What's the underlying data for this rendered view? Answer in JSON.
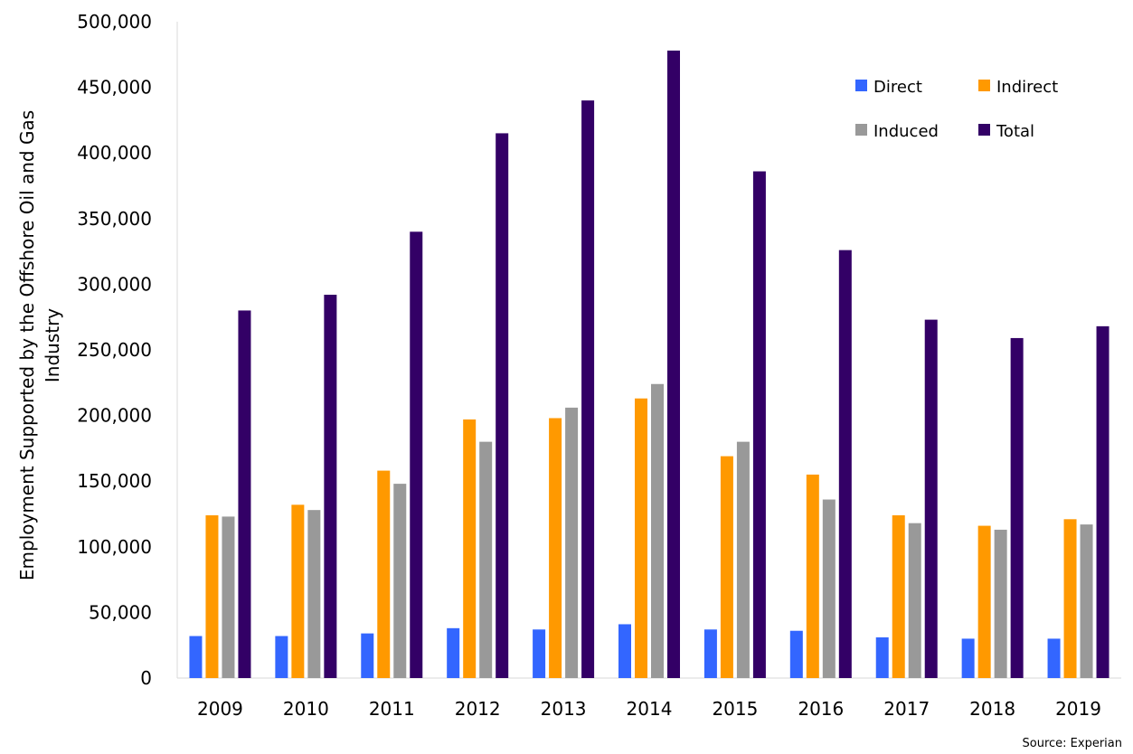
{
  "chart_data": {
    "type": "bar",
    "title": "",
    "xlabel": "",
    "ylabel_lines": [
      "Employment Supported by the Offshore Oil and Gas",
      "Industry"
    ],
    "ylim": [
      0,
      500000
    ],
    "yticks": [
      "0",
      "50,000",
      "100,000",
      "150,000",
      "200,000",
      "250,000",
      "300,000",
      "350,000",
      "400,000",
      "450,000",
      "500,000"
    ],
    "categories": [
      "2009",
      "2010",
      "2011",
      "2012",
      "2013",
      "2014",
      "2015",
      "2016",
      "2017",
      "2018",
      "2019"
    ],
    "series": [
      {
        "name": "Direct",
        "color": "#3366ff",
        "values": [
          32000,
          32000,
          34000,
          38000,
          37000,
          41000,
          37000,
          36000,
          31000,
          30000,
          30000
        ]
      },
      {
        "name": "Indirect",
        "color": "#ff9900",
        "values": [
          124000,
          132000,
          158000,
          197000,
          198000,
          213000,
          169000,
          155000,
          124000,
          116000,
          121000
        ]
      },
      {
        "name": "Induced",
        "color": "#999999",
        "values": [
          123000,
          128000,
          148000,
          180000,
          206000,
          224000,
          180000,
          136000,
          118000,
          113000,
          117000
        ]
      },
      {
        "name": "Total",
        "color": "#330066",
        "values": [
          280000,
          292000,
          340000,
          415000,
          440000,
          478000,
          386000,
          326000,
          273000,
          259000,
          268000
        ]
      }
    ],
    "grid": false,
    "legend_position": "top-right"
  },
  "source_note": "Source: Experian"
}
